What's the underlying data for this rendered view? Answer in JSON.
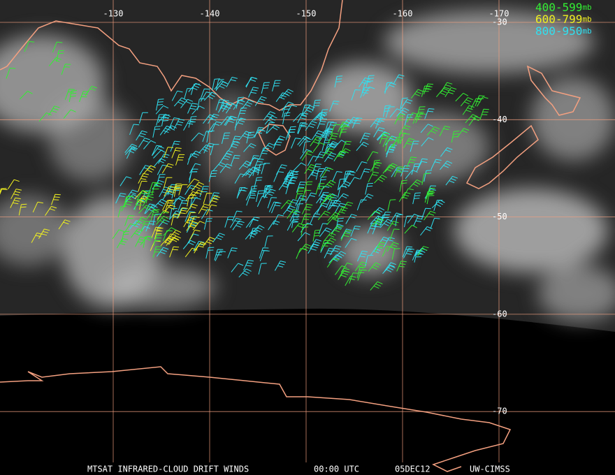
{
  "map": {
    "longitudes": [
      -130,
      -140,
      -150,
      -160,
      -170
    ],
    "latitudes": [
      -30,
      -40,
      -50,
      -60,
      -70
    ],
    "legend": [
      {
        "range": "400-599",
        "unit": "mb",
        "color": "#33ee33"
      },
      {
        "range": "600-799",
        "unit": "mb",
        "color": "#f0f020"
      },
      {
        "range": "800-950",
        "unit": "mb",
        "color": "#30e0f0"
      }
    ],
    "footer": {
      "product": "MTSAT INFRARED-CLOUD DRIFT WINDS",
      "time": "00:00 UTC",
      "date": "05DEC12",
      "source": "UW-CIMSS"
    }
  }
}
